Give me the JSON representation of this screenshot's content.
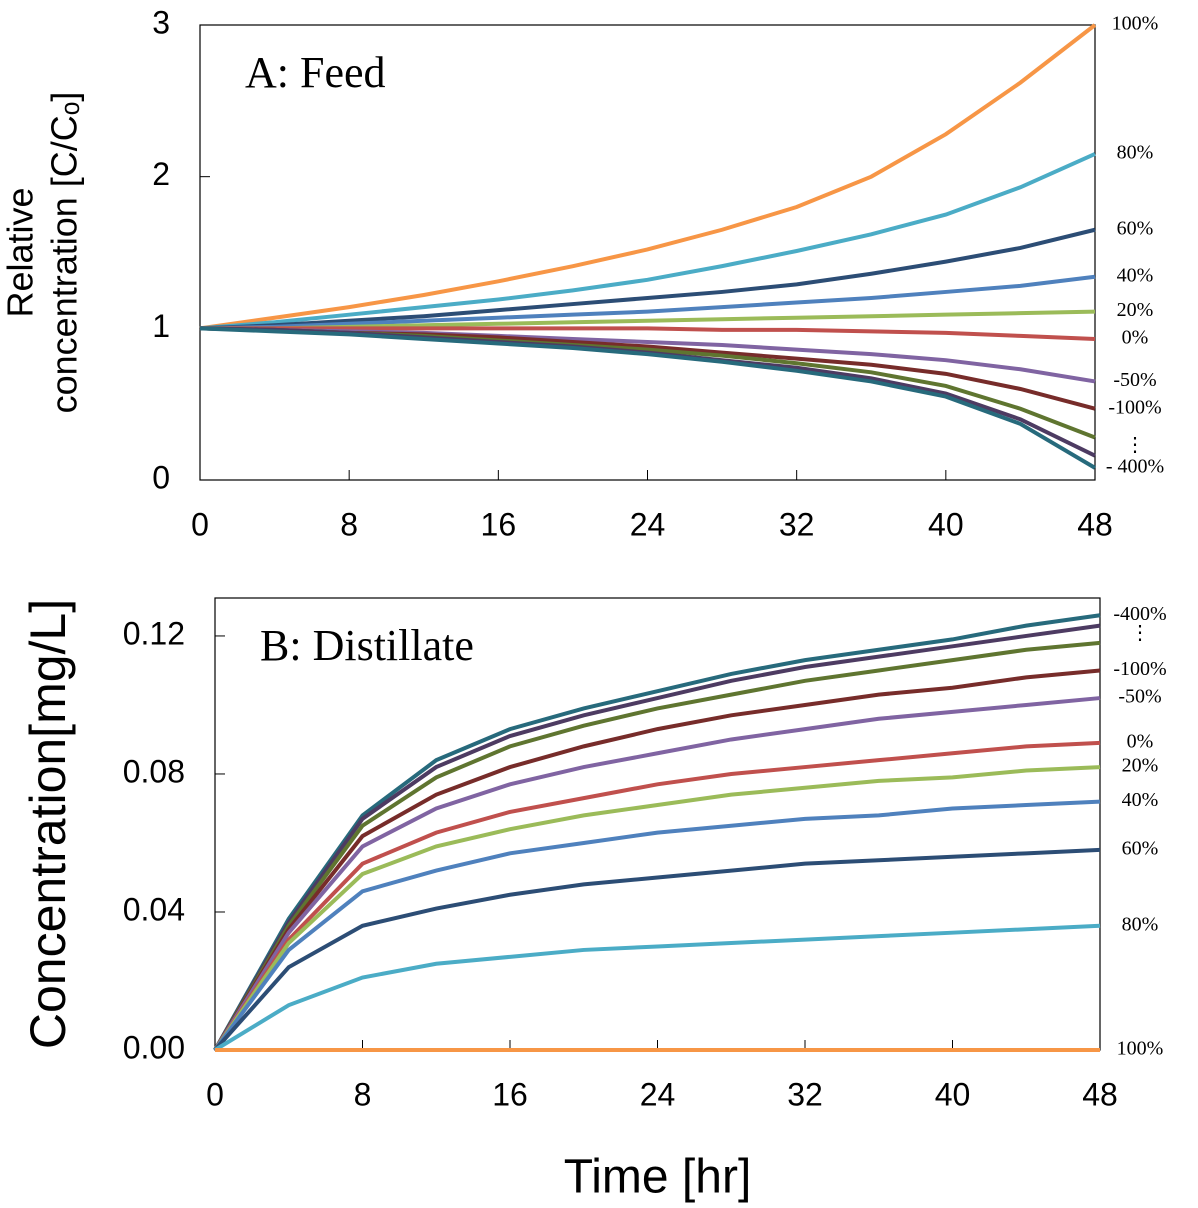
{
  "chart_data": [
    {
      "type": "line",
      "title": "A: Feed",
      "ylabel": [
        "Relative",
        "concentration [C/Cₒ]"
      ],
      "x": [
        0,
        4,
        8,
        12,
        16,
        20,
        24,
        28,
        32,
        36,
        40,
        44,
        48
      ],
      "xlim": [
        0,
        48
      ],
      "xticks": [
        0,
        8,
        16,
        24,
        32,
        40,
        48
      ],
      "ylim": [
        0,
        3
      ],
      "yticks": [
        0,
        1,
        2,
        3
      ],
      "ellipsis": "⋮",
      "series": [
        {
          "name": "100%",
          "color": "#f79646",
          "values": [
            1,
            1.07,
            1.14,
            1.22,
            1.31,
            1.41,
            1.52,
            1.65,
            1.8,
            2.0,
            2.28,
            2.62,
            3.0
          ]
        },
        {
          "name": "80%",
          "color": "#4bacc6",
          "values": [
            1,
            1.04,
            1.09,
            1.14,
            1.19,
            1.25,
            1.32,
            1.41,
            1.51,
            1.62,
            1.75,
            1.93,
            2.15
          ]
        },
        {
          "name": "60%",
          "color": "#2c4d75",
          "values": [
            1,
            1.02,
            1.05,
            1.08,
            1.12,
            1.16,
            1.2,
            1.24,
            1.29,
            1.36,
            1.44,
            1.53,
            1.65
          ]
        },
        {
          "name": "40%",
          "color": "#4f81bd",
          "values": [
            1,
            1.01,
            1.03,
            1.05,
            1.07,
            1.09,
            1.11,
            1.14,
            1.17,
            1.2,
            1.24,
            1.28,
            1.34
          ]
        },
        {
          "name": "20%",
          "color": "#9bbb59",
          "values": [
            1,
            1.0,
            1.01,
            1.02,
            1.03,
            1.04,
            1.05,
            1.06,
            1.07,
            1.08,
            1.09,
            1.1,
            1.11
          ]
        },
        {
          "name": "0%",
          "color": "#c0504d",
          "values": [
            1,
            1,
            1,
            1,
            1,
            1,
            1,
            0.99,
            0.99,
            0.98,
            0.97,
            0.95,
            0.93
          ]
        },
        {
          "name": "-50%",
          "color": "#8064a2",
          "values": [
            1,
            0.99,
            0.98,
            0.97,
            0.95,
            0.93,
            0.91,
            0.89,
            0.86,
            0.83,
            0.79,
            0.73,
            0.65
          ]
        },
        {
          "name": "-100%",
          "color": "#772c2a",
          "values": [
            1,
            0.99,
            0.97,
            0.96,
            0.94,
            0.91,
            0.88,
            0.84,
            0.8,
            0.76,
            0.7,
            0.6,
            0.47
          ]
        },
        {
          "color": "#5f7530",
          "values": [
            1,
            0.99,
            0.97,
            0.95,
            0.92,
            0.89,
            0.86,
            0.82,
            0.77,
            0.71,
            0.62,
            0.47,
            0.28
          ]
        },
        {
          "color": "#4d3b62",
          "values": [
            1,
            0.99,
            0.97,
            0.94,
            0.91,
            0.88,
            0.84,
            0.79,
            0.74,
            0.67,
            0.57,
            0.4,
            0.16
          ]
        },
        {
          "name": "- 400%",
          "color": "#276a7c",
          "values": [
            1,
            0.98,
            0.96,
            0.93,
            0.9,
            0.87,
            0.83,
            0.78,
            0.72,
            0.65,
            0.55,
            0.37,
            0.08
          ]
        }
      ]
    },
    {
      "type": "line",
      "title": "B: Distillate",
      "ylabel": [
        "Concentration[mg/L]"
      ],
      "xlabel": "Time [hr]",
      "x": [
        0,
        4,
        8,
        12,
        16,
        20,
        24,
        28,
        32,
        36,
        40,
        44,
        48
      ],
      "xlim": [
        0,
        48
      ],
      "xticks": [
        0,
        8,
        16,
        24,
        32,
        40,
        48
      ],
      "ylim": [
        0,
        0.131
      ],
      "yticks": [
        {
          "value": 0,
          "label": "0.00"
        },
        0.04,
        0.08,
        0.12
      ],
      "ellipsis": "⋮",
      "series": [
        {
          "name": "-400%",
          "color": "#276a7c",
          "values": [
            0,
            0.038,
            0.068,
            0.084,
            0.093,
            0.099,
            0.104,
            0.109,
            0.113,
            0.116,
            0.119,
            0.123,
            0.126
          ]
        },
        {
          "color": "#4d3b62",
          "values": [
            0,
            0.037,
            0.067,
            0.082,
            0.091,
            0.097,
            0.102,
            0.107,
            0.111,
            0.114,
            0.117,
            0.12,
            0.123
          ]
        },
        {
          "color": "#5f7530",
          "values": [
            0,
            0.036,
            0.065,
            0.079,
            0.088,
            0.094,
            0.099,
            0.103,
            0.107,
            0.11,
            0.113,
            0.116,
            0.118
          ]
        },
        {
          "name": "-100%",
          "color": "#772c2a",
          "values": [
            0,
            0.035,
            0.062,
            0.074,
            0.082,
            0.088,
            0.093,
            0.097,
            0.1,
            0.103,
            0.105,
            0.108,
            0.11
          ]
        },
        {
          "name": "-50%",
          "color": "#8064a2",
          "values": [
            0,
            0.034,
            0.059,
            0.07,
            0.077,
            0.082,
            0.086,
            0.09,
            0.093,
            0.096,
            0.098,
            0.1,
            0.102
          ]
        },
        {
          "name": "0%",
          "color": "#c0504d",
          "values": [
            0,
            0.032,
            0.054,
            0.063,
            0.069,
            0.073,
            0.077,
            0.08,
            0.082,
            0.084,
            0.086,
            0.088,
            0.089
          ]
        },
        {
          "name": "20%",
          "color": "#9bbb59",
          "values": [
            0,
            0.031,
            0.051,
            0.059,
            0.064,
            0.068,
            0.071,
            0.074,
            0.076,
            0.078,
            0.079,
            0.081,
            0.082
          ]
        },
        {
          "name": "40%",
          "color": "#4f81bd",
          "values": [
            0,
            0.029,
            0.046,
            0.052,
            0.057,
            0.06,
            0.063,
            0.065,
            0.067,
            0.068,
            0.07,
            0.071,
            0.072
          ]
        },
        {
          "name": "60%",
          "color": "#2c4d75",
          "values": [
            0,
            0.024,
            0.036,
            0.041,
            0.045,
            0.048,
            0.05,
            0.052,
            0.054,
            0.055,
            0.056,
            0.057,
            0.058
          ]
        },
        {
          "name": "80%",
          "color": "#4bacc6",
          "values": [
            0,
            0.013,
            0.021,
            0.025,
            0.027,
            0.029,
            0.03,
            0.031,
            0.032,
            0.033,
            0.034,
            0.035,
            0.036
          ]
        },
        {
          "name": "100%",
          "color": "#f79646",
          "values": [
            0,
            0,
            0,
            0,
            0,
            0,
            0,
            0,
            0,
            0,
            0,
            0,
            0
          ]
        }
      ]
    }
  ]
}
